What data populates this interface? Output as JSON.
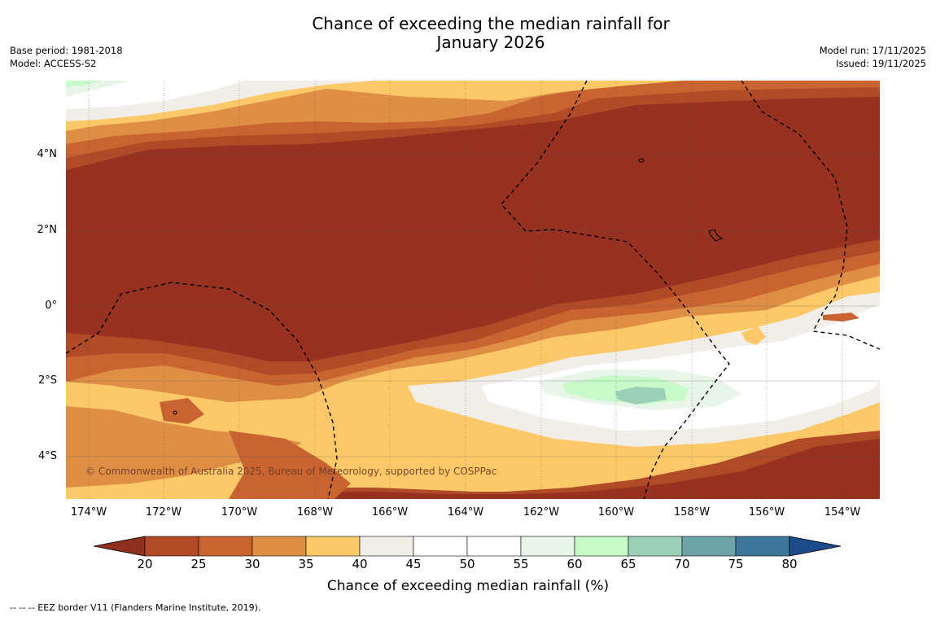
{
  "title_line1": "Chance of exceeding the median rainfall for",
  "title_line2": "January 2026",
  "base_period": "Base period: 1981-2018",
  "model": "Model: ACCESS-S2",
  "model_run": "Model run: 17/11/2025",
  "issued": "Issued: 19/11/2025",
  "copyright": "© Commonwealth of Australia 2025, Bureau of Meteorology, supported by COSPPac",
  "lat_labels": [
    "4°N",
    "2°N",
    "0°",
    "2°S",
    "4°S"
  ],
  "lon_labels": [
    "174°W",
    "172°W",
    "170°W",
    "168°W",
    "166°W",
    "164°W",
    "162°W",
    "160°W",
    "158°W",
    "156°W",
    "154°W"
  ],
  "colorbar_ticks": [
    "20",
    "25",
    "30",
    "35",
    "40",
    "45",
    "50",
    "55",
    "60",
    "65",
    "70",
    "75",
    "80"
  ],
  "colorbar_label": "Chance of exceeding median rainfall (%)",
  "footnote": "--  --  -- EEZ border V11 (Flanders Marine Institute, 2019).",
  "colorbar_colors": [
    "#8f2f1e",
    "#b04a27",
    "#c96431",
    "#de8e45",
    "#fdc867",
    "#f1ede8",
    "#ffffff",
    "#ffffff",
    "#e8f5e8",
    "#c7fac8",
    "#9dd0b8",
    "#6da4a7",
    "#3f779c",
    "#1c4b8c"
  ],
  "map_colors": {
    "darkest": "#96321f",
    "dark": "#b04a27",
    "mid": "#c96431",
    "light_orange": "#de8e45",
    "yellow": "#fdc867",
    "beige": "#f1ede8",
    "white": "#ffffff",
    "pale_green": "#e8f5e8",
    "green": "#c7fac8",
    "teal": "#9dd0b8"
  }
}
